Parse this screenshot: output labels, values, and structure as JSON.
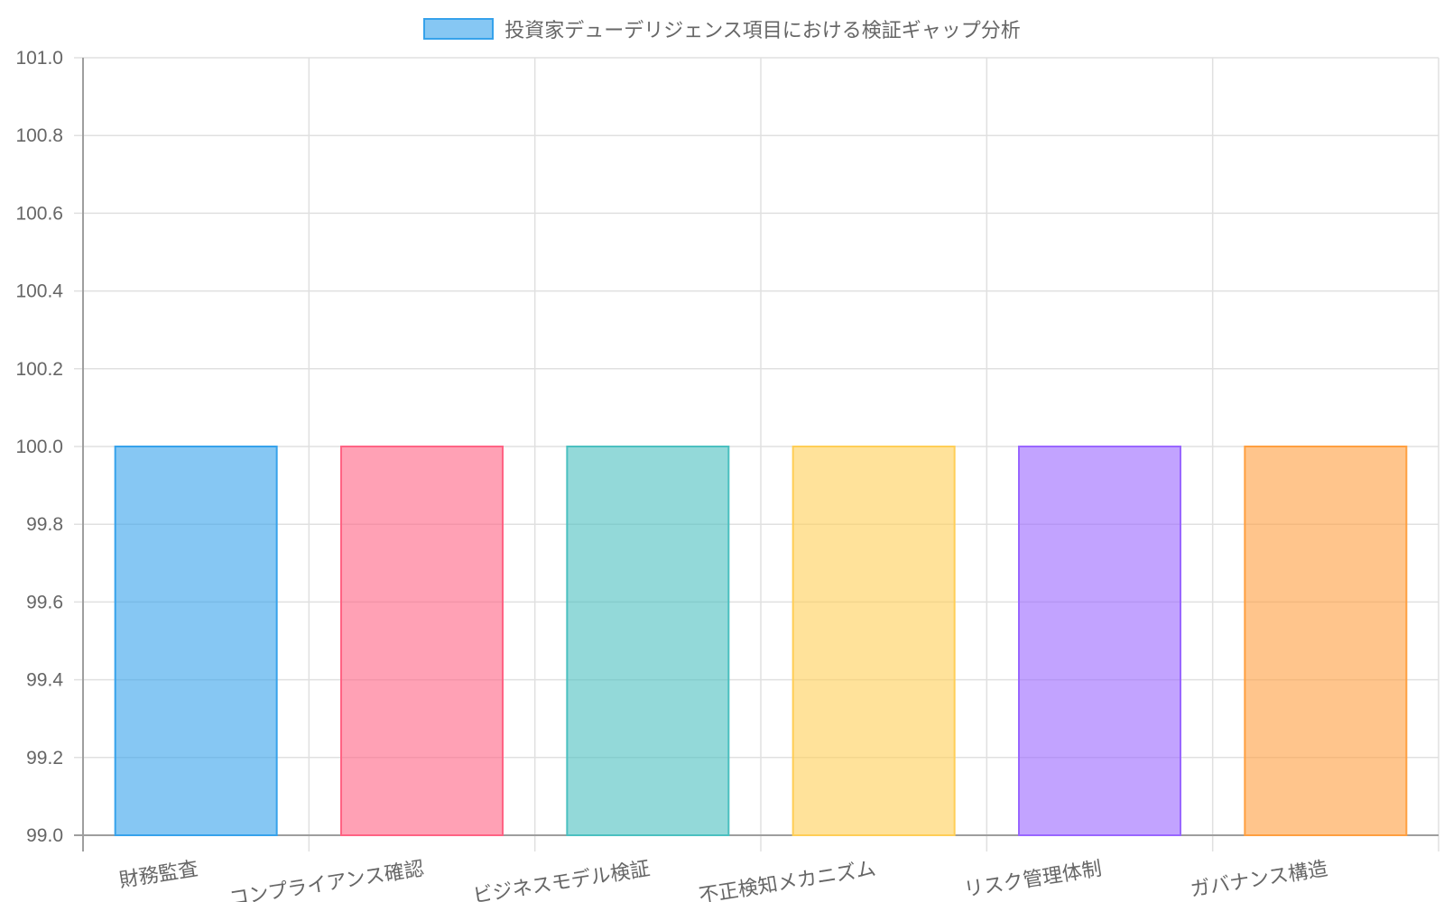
{
  "chart_data": {
    "type": "bar",
    "title": "",
    "xlabel": "",
    "ylabel": "",
    "legend": {
      "position": "top",
      "entries": [
        "投資家デューデリジェンス項目における検証ギャップ分析"
      ]
    },
    "categories": [
      "財務監査",
      "コンプライアンス確認",
      "ビジネスモデル検証",
      "不正検知メカニズム",
      "リスク管理体制",
      "ガバナンス構造"
    ],
    "series": [
      {
        "name": "投資家デューデリジェンス項目における検証ギャップ分析",
        "values": [
          100,
          100,
          100,
          100,
          100,
          100
        ]
      }
    ],
    "ylim": [
      99.0,
      101.0
    ],
    "yticks": [
      "99.0",
      "99.2",
      "99.4",
      "99.6",
      "99.8",
      "100.0",
      "100.2",
      "100.4",
      "100.6",
      "100.8",
      "101.0"
    ],
    "grid": true,
    "colors": {
      "fills": [
        "rgba(54,162,235,0.6)",
        "rgba(255,99,132,0.6)",
        "rgba(75,192,192,0.6)",
        "rgba(255,206,86,0.6)",
        "rgba(153,102,255,0.6)",
        "rgba(255,159,64,0.6)"
      ],
      "borders": [
        "#36a2eb",
        "#ff6384",
        "#4bc0c0",
        "#ffce56",
        "#9966ff",
        "#ff9f40"
      ]
    }
  }
}
